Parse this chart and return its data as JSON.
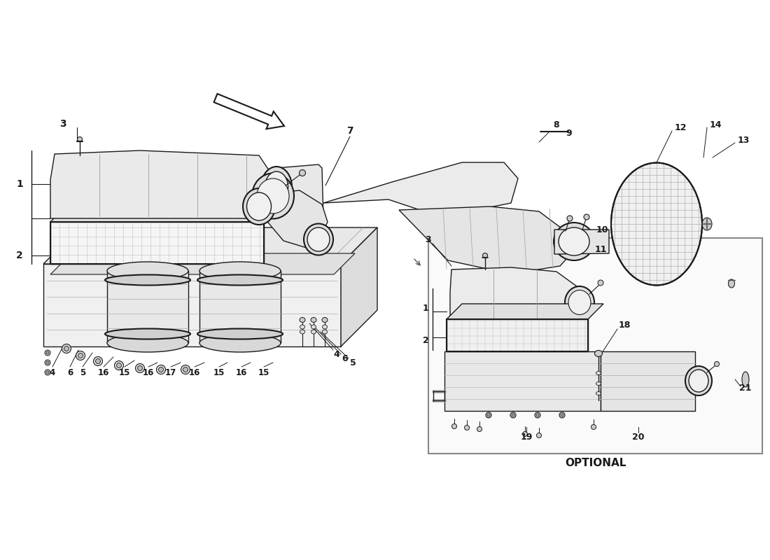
{
  "bg_color": "#ffffff",
  "line_color": "#1a1a1a",
  "watermark_color": "#cccccc",
  "optional_label": "OPTIONAL",
  "fig_width": 11.0,
  "fig_height": 8.0,
  "dpi": 100,
  "bottom_labels": [
    [
      90,
      305,
      75,
      268,
      "4"
    ],
    [
      112,
      300,
      100,
      268,
      "6"
    ],
    [
      132,
      296,
      118,
      268,
      "5"
    ],
    [
      162,
      290,
      148,
      268,
      "16"
    ],
    [
      192,
      285,
      178,
      268,
      "15"
    ],
    [
      225,
      282,
      212,
      268,
      "16"
    ],
    [
      258,
      282,
      244,
      268,
      "17"
    ],
    [
      292,
      282,
      278,
      268,
      "16"
    ],
    [
      325,
      282,
      313,
      268,
      "15"
    ],
    [
      358,
      282,
      345,
      268,
      "16"
    ],
    [
      390,
      282,
      377,
      268,
      "15"
    ]
  ]
}
